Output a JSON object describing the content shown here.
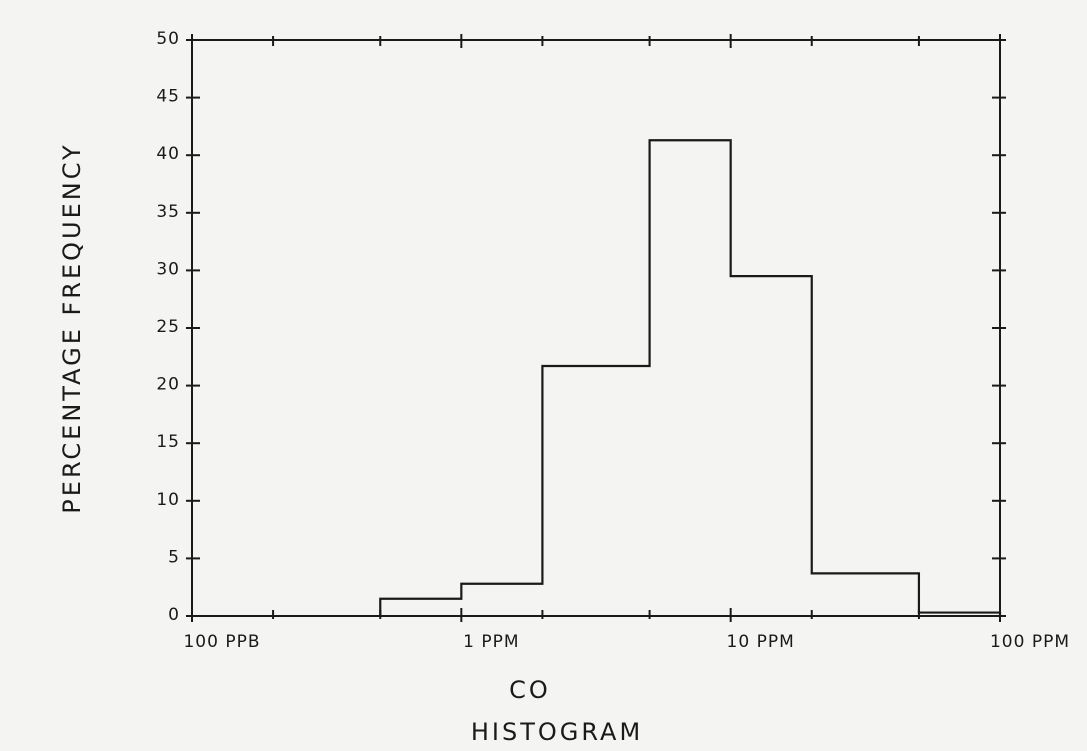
{
  "chart_data": {
    "type": "bar",
    "subtype": "histogram",
    "title": "HISTOGRAM",
    "xlabel": "CO",
    "ylabel": "PERCENTAGE FREQUENCY",
    "x_scale": "log",
    "x_unit": "ppm",
    "xlim": [
      0.1,
      100
    ],
    "ylim": [
      0,
      50
    ],
    "yticks": [
      0,
      5,
      10,
      15,
      20,
      25,
      30,
      35,
      40,
      45,
      50
    ],
    "ytick_labels": [
      "0",
      "5",
      "10",
      "15",
      "20",
      "25",
      "30",
      "35",
      "40",
      "45",
      "50"
    ],
    "xtick_labels": [
      {
        "value": 0.1,
        "label": "100 PPB"
      },
      {
        "value": 1,
        "label": "1 PPM"
      },
      {
        "value": 10,
        "label": "10 PPM"
      },
      {
        "value": 100,
        "label": "100 PPM"
      }
    ],
    "minor_xticks": [
      0.2,
      0.5,
      2,
      5,
      20,
      50
    ],
    "grid": false,
    "bins": [
      {
        "lo": 0.5,
        "hi": 1,
        "value": 1.5
      },
      {
        "lo": 1,
        "hi": 2,
        "value": 2.8
      },
      {
        "lo": 2,
        "hi": 5,
        "value": 21.7
      },
      {
        "lo": 5,
        "hi": 10,
        "value": 41.3
      },
      {
        "lo": 10,
        "hi": 20,
        "value": 29.5
      },
      {
        "lo": 20,
        "hi": 50,
        "value": 3.7
      },
      {
        "lo": 50,
        "hi": 100,
        "value": 0.3
      }
    ],
    "line_color": "#1a1a1a"
  }
}
